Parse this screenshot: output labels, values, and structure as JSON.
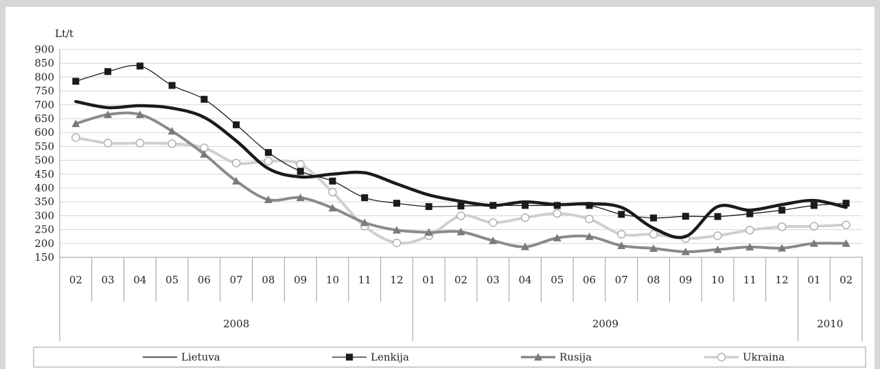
{
  "chart_data": {
    "type": "line",
    "ylabel": "Lt/t",
    "ylim": [
      150,
      900
    ],
    "yticks": [
      150,
      200,
      250,
      300,
      350,
      400,
      450,
      500,
      550,
      600,
      650,
      700,
      750,
      800,
      850,
      900
    ],
    "grid": true,
    "categories": [
      "02",
      "03",
      "04",
      "05",
      "06",
      "07",
      "08",
      "09",
      "10",
      "11",
      "12",
      "01",
      "02",
      "03",
      "04",
      "05",
      "06",
      "07",
      "08",
      "09",
      "10",
      "11",
      "12",
      "01",
      "02"
    ],
    "years": [
      {
        "label": "2008",
        "start": 0,
        "end": 10
      },
      {
        "label": "2009",
        "start": 11,
        "end": 22
      },
      {
        "label": "2010",
        "start": 23,
        "end": 24
      }
    ],
    "legend_position": "bottom",
    "series": [
      {
        "name": "Lietuva",
        "style": "thick",
        "color": "#1a1a1a",
        "values": [
          712,
          690,
          697,
          688,
          655,
          570,
          470,
          440,
          450,
          455,
          415,
          375,
          352,
          337,
          350,
          340,
          343,
          330,
          255,
          225,
          333,
          320,
          340,
          355,
          330
        ]
      },
      {
        "name": "Lenkija",
        "style": "square",
        "color": "#1a1a1a",
        "values": [
          785,
          820,
          840,
          770,
          720,
          628,
          528,
          460,
          425,
          365,
          345,
          333,
          335,
          337,
          337,
          337,
          337,
          305,
          292,
          298,
          297,
          307,
          320,
          337,
          345
        ]
      },
      {
        "name": "Rusija",
        "style": "triangle",
        "color": "#7a7a7a",
        "values": [
          632,
          665,
          665,
          605,
          522,
          425,
          358,
          365,
          328,
          275,
          248,
          240,
          242,
          210,
          188,
          220,
          225,
          192,
          182,
          170,
          178,
          187,
          183,
          200,
          200
        ]
      },
      {
        "name": "Ukraina",
        "style": "circle",
        "color": "#c8c8c8",
        "values": [
          582,
          562,
          562,
          560,
          545,
          490,
          497,
          485,
          385,
          262,
          202,
          227,
          300,
          275,
          293,
          308,
          288,
          233,
          233,
          218,
          228,
          248,
          260,
          262,
          267
        ]
      }
    ]
  }
}
